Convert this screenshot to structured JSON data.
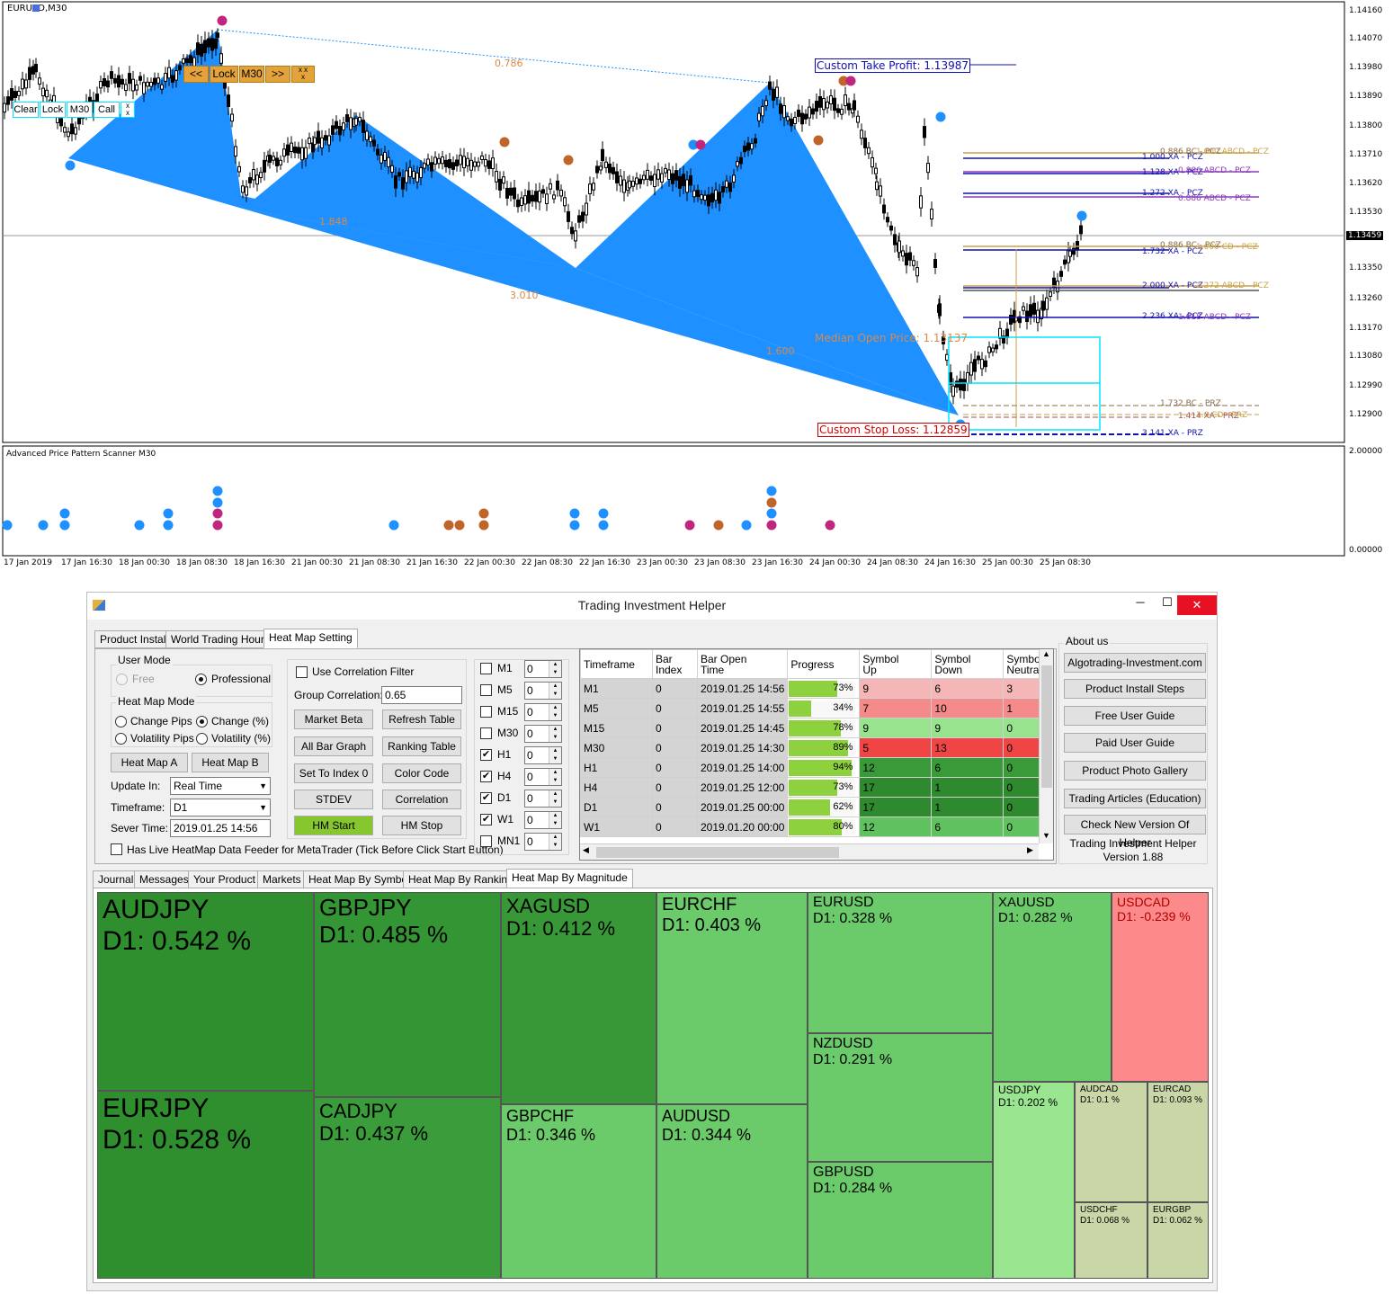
{
  "chart": {
    "title": "EURUSD,M30",
    "price_labels": [
      "1.14160",
      "1.14070",
      "1.13980",
      "1.13890",
      "1.13800",
      "1.13710",
      "1.13620",
      "1.13530",
      "1.13459",
      "1.13350",
      "1.13260",
      "1.13170",
      "1.13080",
      "1.12990",
      "1.12900"
    ],
    "current_price": "1.13459",
    "indicator_title": "Advanced Price Pattern Scanner M30",
    "indicator_scale_top": "2.00000",
    "indicator_scale_bottom": "0.00000",
    "time_labels": [
      "17 Jan 2019",
      "17 Jan 16:30",
      "18 Jan 00:30",
      "18 Jan 08:30",
      "18 Jan 16:30",
      "21 Jan 00:30",
      "21 Jan 08:30",
      "21 Jan 16:30",
      "22 Jan 00:30",
      "22 Jan 08:30",
      "22 Jan 16:30",
      "23 Jan 00:30",
      "23 Jan 08:30",
      "23 Jan 16:30",
      "24 Jan 00:30",
      "24 Jan 08:30",
      "24 Jan 16:30",
      "25 Jan 00:30",
      "25 Jan 08:30"
    ],
    "ratio_labels": {
      "r786": "0.786",
      "r1848": "1.848",
      "r3010": "3.010",
      "r1600": "1.600"
    },
    "take_profit": "Custom Take Profit: 1.13987",
    "stop_loss": "Custom Stop Loss: 1.12859",
    "median_open": "Median Open Price: 1.13137",
    "controls_left": {
      "clear": "Clear",
      "lock": "Lock",
      "tf": "M30",
      "call": "Call"
    },
    "controls_top": {
      "prev": "<<",
      "lock": "Lock",
      "tf": "M30",
      "next": ">>"
    },
    "prz_lines": [
      "0.886 BC - PCZ",
      "1.000 XA - PCZ",
      "1.128 XA - PCZ",
      "1.272 XA - PCZ",
      "0.886 BC - PCZ",
      "1.732 XA - PCZ",
      "2.000 XA - PCZ",
      "2.236 XA - PCZ",
      "1.732 BC - PRZ",
      "1.414 XA - PRZ",
      "3.141 XA - PRZ"
    ],
    "abcd_lines": [
      "1.000 ABCD - PCZ",
      "0.886 ABCD - PCZ",
      "0.886 ABCD - PCZ",
      "1.000 CD - PCZ",
      "1.272 ABCD - PCZ",
      "1.618 ABCD - PCZ",
      "1.0 CD - PRZ"
    ]
  },
  "window": {
    "title": "Trading Investment Helper",
    "controls": {
      "min": "─",
      "max": "☐",
      "close": "✕"
    },
    "top_tabs": [
      "Product Install",
      "World Trading Hours",
      "Heat Map Setting"
    ],
    "user_mode": {
      "label": "User Mode",
      "free": "Free",
      "professional": "Professional"
    },
    "heat_map_mode": {
      "label": "Heat Map Mode",
      "change_pips": "Change Pips",
      "change_pct": "Change (%)",
      "volatility_pips": "Volatility Pips",
      "volatility_pct": "Volatility (%)"
    },
    "heat_map_a": "Heat Map A",
    "heat_map_b": "Heat Map B",
    "update_in_label": "Update In:",
    "update_in_value": "Real Time",
    "timeframe_label": "Timeframe:",
    "timeframe_value": "D1",
    "server_time_label": "Sever Time:",
    "server_time_value": "2019.01.25 14:56",
    "live_feeder": "Has Live HeatMap Data Feeder for MetaTrader (Tick Before Click Start Button)",
    "use_correlation": "Use Correlation Filter",
    "group_correlation_label": "Group Correlation:",
    "group_correlation_value": "0.65",
    "buttons": {
      "market_beta": "Market Beta",
      "refresh_table": "Refresh Table",
      "all_bar_graph": "All Bar Graph",
      "ranking_table": "Ranking Table",
      "set_index": "Set To Index 0",
      "color_code": "Color Code",
      "stdev": "STDEV",
      "correlation": "Correlation",
      "hm_start": "HM Start",
      "hm_stop": "HM Stop"
    },
    "timeframes": [
      {
        "name": "M1",
        "checked": false,
        "val": "0"
      },
      {
        "name": "M5",
        "checked": false,
        "val": "0"
      },
      {
        "name": "M15",
        "checked": false,
        "val": "0"
      },
      {
        "name": "M30",
        "checked": false,
        "val": "0"
      },
      {
        "name": "H1",
        "checked": true,
        "val": "0"
      },
      {
        "name": "H4",
        "checked": true,
        "val": "0"
      },
      {
        "name": "D1",
        "checked": true,
        "val": "0"
      },
      {
        "name": "W1",
        "checked": true,
        "val": "0"
      },
      {
        "name": "MN1",
        "checked": false,
        "val": "0"
      }
    ],
    "table": {
      "headers": [
        "Timeframe",
        "Bar\nIndex",
        "Bar Open\nTime",
        "Progress",
        "Symbol\nUp",
        "Symbol\nDown",
        "Symbol\nNeutral"
      ],
      "rows": [
        {
          "tf": "M1",
          "idx": "0",
          "time": "2019.01.25 14:56",
          "prog": 73,
          "prog_label": "73%",
          "up": "9",
          "down": "6",
          "neutral": "3",
          "color": "#f4b6b6"
        },
        {
          "tf": "M5",
          "idx": "0",
          "time": "2019.01.25 14:55",
          "prog": 34,
          "prog_label": "34%",
          "up": "7",
          "down": "10",
          "neutral": "1",
          "color": "#f58a8a"
        },
        {
          "tf": "M15",
          "idx": "0",
          "time": "2019.01.25 14:45",
          "prog": 78,
          "prog_label": "78%",
          "up": "9",
          "down": "9",
          "neutral": "0",
          "color": "#98e38e"
        },
        {
          "tf": "M30",
          "idx": "0",
          "time": "2019.01.25 14:30",
          "prog": 89,
          "prog_label": "89%",
          "up": "5",
          "down": "13",
          "neutral": "0",
          "color": "#f04545"
        },
        {
          "tf": "H1",
          "idx": "0",
          "time": "2019.01.25 14:00",
          "prog": 94,
          "prog_label": "94%",
          "up": "12",
          "down": "6",
          "neutral": "0",
          "color": "#3a9a3a"
        },
        {
          "tf": "H4",
          "idx": "0",
          "time": "2019.01.25 12:00",
          "prog": 73,
          "prog_label": "73%",
          "up": "17",
          "down": "1",
          "neutral": "0",
          "color": "#2f8a2f"
        },
        {
          "tf": "D1",
          "idx": "0",
          "time": "2019.01.25 00:00",
          "prog": 62,
          "prog_label": "62%",
          "up": "17",
          "down": "1",
          "neutral": "0",
          "color": "#2f8a2f"
        },
        {
          "tf": "W1",
          "idx": "0",
          "time": "2019.01.20 00:00",
          "prog": 80,
          "prog_label": "80%",
          "up": "12",
          "down": "6",
          "neutral": "0",
          "color": "#5fc25f"
        }
      ]
    },
    "about": {
      "label": "About us",
      "buttons": [
        "Algotrading-Investment.com",
        "Product Install Steps",
        "Free User Guide",
        "Paid User Guide",
        "Product Photo Gallery",
        "Trading Articles (Education)",
        "Check New Version Of Helper"
      ],
      "product": "Trading Investment Helper",
      "version": "Version 1.88"
    },
    "bottom_tabs": [
      "Journal",
      "Messages",
      "Your Product",
      "Markets",
      "Heat Map By Symbol",
      "Heat Map By Ranking",
      "Heat Map By Magnitude"
    ]
  },
  "heatmap": [
    {
      "symbol": "AUDJPY",
      "value": "D1: 0.542 %",
      "color": "#2f8f2f"
    },
    {
      "symbol": "EURJPY",
      "value": "D1: 0.528 %",
      "color": "#2f8f2f"
    },
    {
      "symbol": "GBPJPY",
      "value": "D1: 0.485 %",
      "color": "#349534"
    },
    {
      "symbol": "CADJPY",
      "value": "D1: 0.437 %",
      "color": "#3a9c3a"
    },
    {
      "symbol": "XAGUSD",
      "value": "D1: 0.412 %",
      "color": "#389838"
    },
    {
      "symbol": "GBPCHF",
      "value": "D1: 0.346 %",
      "color": "#6bcb6b"
    },
    {
      "symbol": "EURCHF",
      "value": "D1: 0.403 %",
      "color": "#6bcb6b"
    },
    {
      "symbol": "AUDUSD",
      "value": "D1: 0.344 %",
      "color": "#6bcb6b"
    },
    {
      "symbol": "EURUSD",
      "value": "D1: 0.328 %",
      "color": "#6bcb6b"
    },
    {
      "symbol": "NZDUSD",
      "value": "D1: 0.291 %",
      "color": "#6bcb6b"
    },
    {
      "symbol": "GBPUSD",
      "value": "D1: 0.284 %",
      "color": "#6bcb6b"
    },
    {
      "symbol": "XAUUSD",
      "value": "D1: 0.282 %",
      "color": "#6bcb6b"
    },
    {
      "symbol": "USDCAD",
      "value": "D1: -0.239 %",
      "color": "#fc8a8a"
    },
    {
      "symbol": "USDJPY",
      "value": "D1: 0.202 %",
      "color": "#9ae58f"
    },
    {
      "symbol": "AUDCAD",
      "value": "D1: 0.1 %",
      "color": "#c9d6a8"
    },
    {
      "symbol": "EURCAD",
      "value": "D1: 0.093 %",
      "color": "#c9d6a8"
    },
    {
      "symbol": "USDCHF",
      "value": "D1: 0.068 %",
      "color": "#c9d6a8"
    },
    {
      "symbol": "EURGBP",
      "value": "D1: 0.062 %",
      "color": "#c9d6a8"
    }
  ]
}
